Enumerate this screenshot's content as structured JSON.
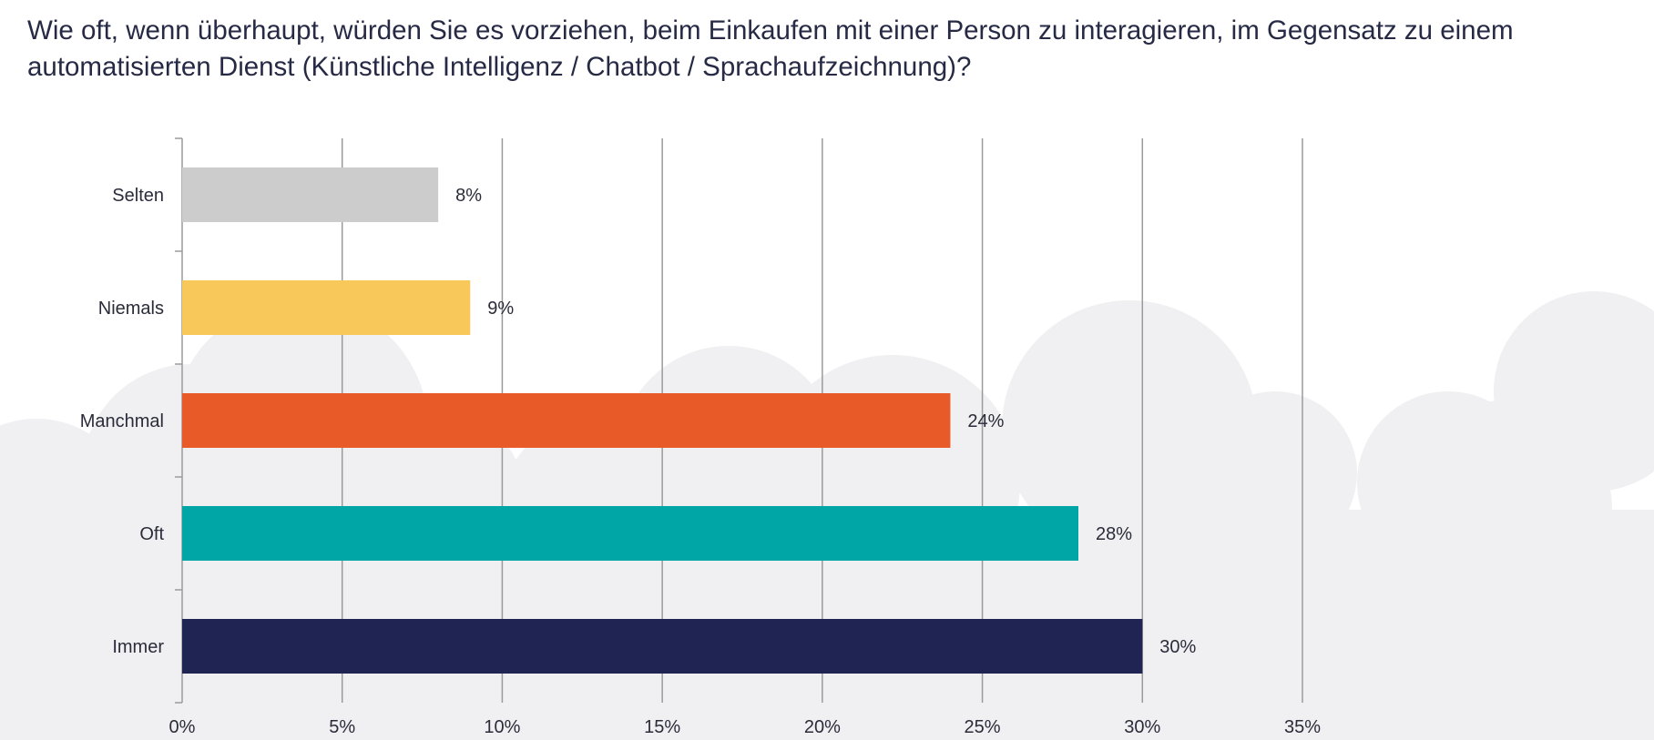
{
  "title": "Wie oft, wenn überhaupt, würden Sie es vorziehen, beim Einkaufen mit einer Person zu interagieren, im Gegensatz zu einem automatisierten Dienst (Künstliche Intelligenz / Chatbot / Sprachaufzeichnung)?",
  "chart_data": {
    "type": "bar",
    "orientation": "horizontal",
    "title": "Wie oft, wenn überhaupt, würden Sie es vorziehen, beim Einkaufen mit einer Person zu interagieren, im Gegensatz zu einem automatisierten Dienst (Künstliche Intelligenz / Chatbot / Sprachaufzeichnung)?",
    "categories": [
      "Selten",
      "Niemals",
      "Manchmal",
      "Oft",
      "Immer"
    ],
    "values": [
      8,
      9,
      24,
      28,
      30
    ],
    "data_labels": [
      "8%",
      "9%",
      "24%",
      "28%",
      "30%"
    ],
    "colors": [
      "#cccccc",
      "#f8c95a",
      "#e85a28",
      "#00a6a6",
      "#1f2452"
    ],
    "xlim": [
      0,
      35
    ],
    "xticks": [
      "0%",
      "5%",
      "10%",
      "15%",
      "20%",
      "25%",
      "30%",
      "35%"
    ],
    "grid": true,
    "legend": "none",
    "xlabel": "",
    "ylabel": ""
  }
}
